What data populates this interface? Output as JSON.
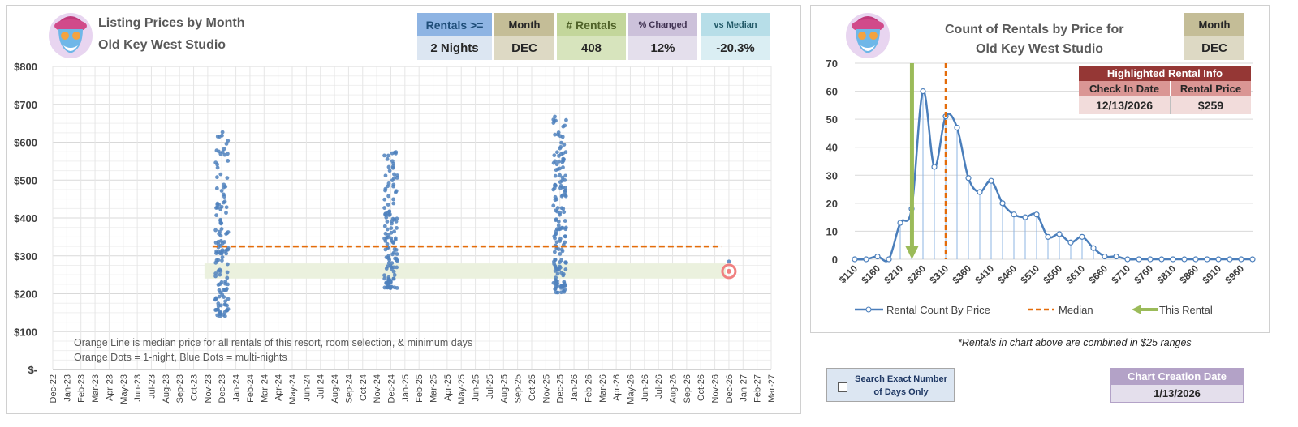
{
  "left": {
    "title_line1": "Listing Prices by Month",
    "title_line2": "Old Key West Studio",
    "boxes": [
      {
        "label": "Rentals >=",
        "value": "2 Nights"
      },
      {
        "label": "Month",
        "value": "DEC"
      },
      {
        "label": "# Rentals",
        "value": "408"
      },
      {
        "label": "% Changed",
        "value": "12%"
      },
      {
        "label": "vs Median",
        "value": "-20.3%"
      }
    ],
    "note_line1": "Orange Line is median price for all rentals of this resort, room selection, & minimum days",
    "note_line2": "Orange Dots = 1-night, Blue Dots = multi-nights"
  },
  "right": {
    "title_line1": "Count of Rentals by Price for",
    "title_line2": "Old Key West Studio",
    "month_label": "Month",
    "month_value": "DEC",
    "highlight": {
      "title": "Highlighted Rental Info",
      "col1_label": "Check In Date",
      "col2_label": "Rental Price",
      "col1_value": "12/13/2026",
      "col2_value": "$259"
    },
    "footnote": "*Rentals in chart above are combined in $25 ranges"
  },
  "controls": {
    "search_exact_label": "Search Exact Number of Days Only",
    "creation_label": "Chart Creation Date",
    "creation_value": "1/13/2026"
  },
  "colors": {
    "rentals_hdr": "#8eb4e3",
    "rentals_val": "#dce6f2",
    "month_hdr": "#c4bd97",
    "month_val": "#ddd9c4",
    "count_hdr": "#c3d69b",
    "count_val": "#d7e4bd",
    "changed_hdr": "#ccc1da",
    "changed_val": "#e4dfec",
    "median_hdr": "#b7dee8",
    "median_val": "#daeef3",
    "highlight_title": "#953735",
    "highlight_hdr": "#da9694",
    "highlight_val": "#f2dcdb",
    "creation_hdr": "#b3a2c7",
    "creation_val": "#e4dfec",
    "dot_blue": "#4f81bd",
    "median_orange": "#e46c0a",
    "arrow_green": "#9bbb59"
  },
  "chart_data": [
    {
      "type": "scatter",
      "y_tick_labels": [
        "$-",
        "$100",
        "$200",
        "$300",
        "$400",
        "$500",
        "$600",
        "$700",
        "$800"
      ],
      "ylim": [
        0,
        800
      ],
      "x_tick_labels": [
        "Dec-22",
        "Jan-23",
        "Feb-23",
        "Mar-23",
        "Apr-23",
        "May-23",
        "Jun-23",
        "Jul-23",
        "Aug-23",
        "Sep-23",
        "Oct-23",
        "Nov-23",
        "Dec-23",
        "Jan-24",
        "Feb-24",
        "Mar-24",
        "Apr-24",
        "May-24",
        "Jun-24",
        "Jul-24",
        "Aug-24",
        "Sep-24",
        "Oct-24",
        "Nov-24",
        "Dec-24",
        "Jan-25",
        "Feb-25",
        "Mar-25",
        "Apr-25",
        "May-25",
        "Jun-25",
        "Jul-25",
        "Aug-25",
        "Sep-25",
        "Oct-25",
        "Nov-25",
        "Dec-25",
        "Jan-26",
        "Feb-26",
        "Mar-26",
        "Apr-26",
        "May-26",
        "Jun-26",
        "Jul-26",
        "Aug-26",
        "Sep-26",
        "Oct-26",
        "Nov-26",
        "Dec-26",
        "Jan-27",
        "Feb-27",
        "Mar-27"
      ],
      "median": 325,
      "median_x_range": [
        "Nov-23",
        "Dec-26"
      ],
      "highlight_band": [
        240,
        280
      ],
      "highlighted_point": {
        "x": "Dec-26",
        "y": 259
      },
      "series": [
        {
          "x": "Dec-23",
          "min": 140,
          "max": 645,
          "count": 130
        },
        {
          "x": "Dec-24",
          "min": 215,
          "max": 590,
          "count": 125
        },
        {
          "x": "Dec-25",
          "min": 200,
          "max": 673,
          "count": 150
        },
        {
          "x": "Dec-26",
          "min": 280,
          "max": 290,
          "count": 1
        }
      ]
    },
    {
      "type": "line",
      "categories": [
        "$110",
        "$135",
        "$160",
        "$185",
        "$210",
        "$235",
        "$260",
        "$285",
        "$310",
        "$335",
        "$360",
        "$385",
        "$410",
        "$435",
        "$460",
        "$485",
        "$510",
        "$535",
        "$560",
        "$585",
        "$610",
        "$635",
        "$660",
        "$685",
        "$710",
        "$735",
        "$760",
        "$785",
        "$810",
        "$835",
        "$860",
        "$885",
        "$910",
        "$935",
        "$960",
        "$985"
      ],
      "x_tick_labels": [
        "$110",
        "$160",
        "$210",
        "$260",
        "$310",
        "$360",
        "$410",
        "$460",
        "$510",
        "$560",
        "$610",
        "$660",
        "$710",
        "$760",
        "$810",
        "$860",
        "$910",
        "$960"
      ],
      "values": [
        0,
        0,
        1,
        0,
        13,
        18,
        60,
        33,
        51,
        47,
        29,
        24,
        28,
        20,
        16,
        15,
        16,
        8,
        9,
        6,
        8,
        4,
        1,
        1,
        0,
        0,
        0,
        0,
        0,
        0,
        0,
        0,
        0,
        0,
        0,
        0
      ],
      "ylim": [
        0,
        70
      ],
      "y_tick_labels": [
        "0",
        "10",
        "20",
        "30",
        "40",
        "50",
        "60",
        "70"
      ],
      "median": 310,
      "this_rental": 259,
      "legend": [
        "Rental Count By Price",
        "Median",
        "This Rental"
      ]
    }
  ]
}
